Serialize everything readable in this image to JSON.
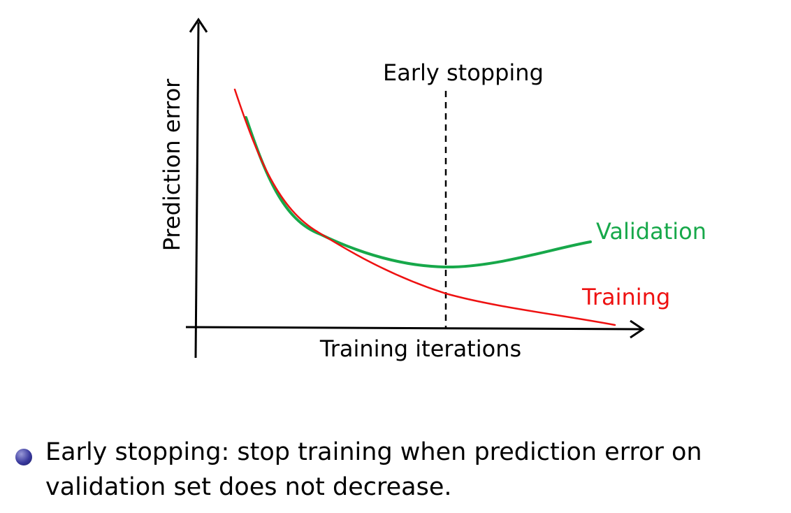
{
  "colors": {
    "axes": "#000000",
    "training": "#ee1111",
    "validation": "#17a84a",
    "marker": "#000000",
    "bullet": "#3a3a9e"
  },
  "figure": {
    "xlabel": "Training iterations",
    "ylabel": "Prediction error",
    "marker_label": "Early stopping",
    "series": [
      {
        "name": "Validation",
        "color": "#17a84a",
        "x": [
          0.07,
          0.3,
          0.6,
          1.0
        ],
        "y": [
          0.9,
          0.43,
          0.25,
          0.38
        ]
      },
      {
        "name": "Training",
        "color": "#ee1111",
        "x": [
          0.0,
          0.3,
          0.6,
          1.0
        ],
        "y": [
          1.08,
          0.43,
          0.16,
          0.0
        ]
      }
    ],
    "early_stop_x": 0.6
  },
  "bullet": {
    "text": "Early stopping: stop training when prediction error on validation set does not decrease."
  }
}
